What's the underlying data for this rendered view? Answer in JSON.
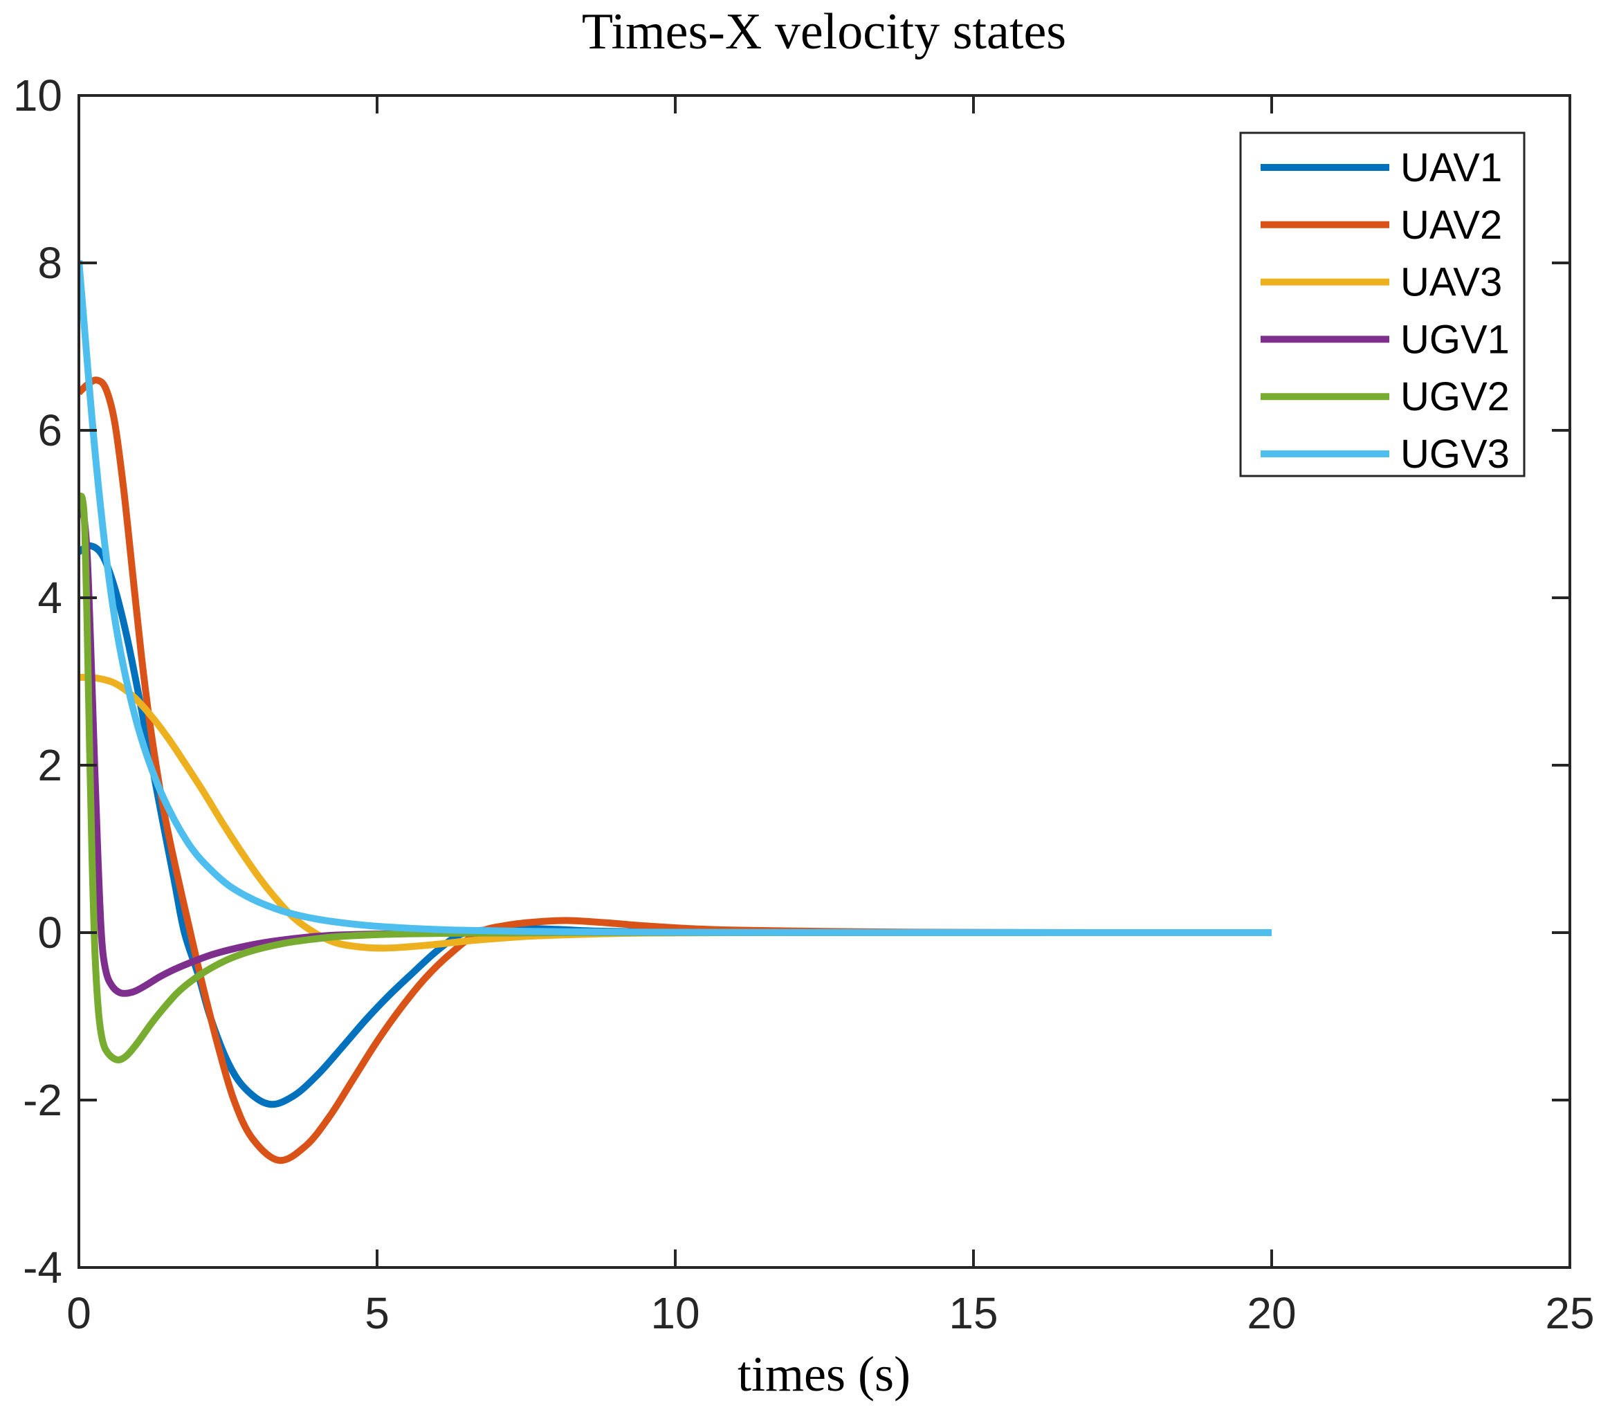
{
  "chart_data": {
    "type": "line",
    "title": "Times-X velocity states",
    "xlabel": "times (s)",
    "ylabel": "",
    "xlim": [
      0,
      25
    ],
    "ylim": [
      -4,
      10
    ],
    "xticks": [
      "0",
      "5",
      "10",
      "15",
      "20",
      "25"
    ],
    "xtick_values": [
      0,
      5,
      10,
      15,
      20,
      25
    ],
    "yticks": [
      "-4",
      "-2",
      "0",
      "2",
      "4",
      "6",
      "8",
      "10"
    ],
    "ytick_values": [
      -4,
      -2,
      0,
      2,
      4,
      6,
      8,
      10
    ],
    "grid": false,
    "legend_position": "top-right",
    "axis_color": "#262626",
    "background": "#ffffff",
    "series": [
      {
        "name": "UAV1",
        "color": "#0072BD",
        "points": [
          [
            0,
            4.55
          ],
          [
            0.2,
            4.62
          ],
          [
            0.4,
            4.5
          ],
          [
            0.6,
            4.12
          ],
          [
            0.8,
            3.55
          ],
          [
            1.0,
            2.85
          ],
          [
            1.2,
            2.1
          ],
          [
            1.4,
            1.35
          ],
          [
            1.6,
            0.62
          ],
          [
            1.77,
            0
          ],
          [
            2.0,
            -0.5
          ],
          [
            2.2,
            -1.0
          ],
          [
            2.5,
            -1.55
          ],
          [
            2.8,
            -1.87
          ],
          [
            3.2,
            -2.05
          ],
          [
            3.6,
            -1.95
          ],
          [
            4.0,
            -1.7
          ],
          [
            4.4,
            -1.38
          ],
          [
            4.8,
            -1.05
          ],
          [
            5.2,
            -0.75
          ],
          [
            5.6,
            -0.48
          ],
          [
            6.0,
            -0.22
          ],
          [
            6.4,
            -0.02
          ],
          [
            6.8,
            0.03
          ],
          [
            7.4,
            0.05
          ],
          [
            8.0,
            0.04
          ],
          [
            8.6,
            0.02
          ],
          [
            9.5,
            0.01
          ],
          [
            11,
            0
          ],
          [
            14,
            0
          ],
          [
            17,
            0
          ],
          [
            20,
            0
          ]
        ]
      },
      {
        "name": "UAV2",
        "color": "#D95319",
        "points": [
          [
            0,
            6.45
          ],
          [
            0.15,
            6.55
          ],
          [
            0.3,
            6.6
          ],
          [
            0.45,
            6.5
          ],
          [
            0.6,
            6.1
          ],
          [
            0.75,
            5.3
          ],
          [
            0.9,
            4.3
          ],
          [
            1.05,
            3.3
          ],
          [
            1.2,
            2.45
          ],
          [
            1.4,
            1.55
          ],
          [
            1.6,
            0.85
          ],
          [
            1.87,
            0
          ],
          [
            2.1,
            -0.7
          ],
          [
            2.35,
            -1.4
          ],
          [
            2.6,
            -2.0
          ],
          [
            2.9,
            -2.45
          ],
          [
            3.35,
            -2.72
          ],
          [
            3.8,
            -2.55
          ],
          [
            4.2,
            -2.2
          ],
          [
            4.6,
            -1.75
          ],
          [
            5.0,
            -1.3
          ],
          [
            5.4,
            -0.9
          ],
          [
            5.8,
            -0.55
          ],
          [
            6.2,
            -0.27
          ],
          [
            6.7,
            0
          ],
          [
            7.2,
            0.09
          ],
          [
            7.7,
            0.13
          ],
          [
            8.2,
            0.145
          ],
          [
            8.8,
            0.12
          ],
          [
            9.5,
            0.08
          ],
          [
            10.2,
            0.05
          ],
          [
            11,
            0.03
          ],
          [
            12.5,
            0.015
          ],
          [
            14,
            0.005
          ],
          [
            17,
            0
          ],
          [
            20,
            0
          ]
        ]
      },
      {
        "name": "UAV3",
        "color": "#EDB120",
        "points": [
          [
            0,
            3.05
          ],
          [
            0.3,
            3.04
          ],
          [
            0.6,
            2.98
          ],
          [
            0.9,
            2.83
          ],
          [
            1.2,
            2.6
          ],
          [
            1.5,
            2.32
          ],
          [
            1.8,
            2.0
          ],
          [
            2.1,
            1.67
          ],
          [
            2.4,
            1.32
          ],
          [
            2.7,
            0.99
          ],
          [
            3.0,
            0.68
          ],
          [
            3.3,
            0.41
          ],
          [
            3.6,
            0.18
          ],
          [
            3.95,
            0
          ],
          [
            4.3,
            -0.12
          ],
          [
            4.7,
            -0.17
          ],
          [
            5.1,
            -0.185
          ],
          [
            5.5,
            -0.17
          ],
          [
            6.0,
            -0.14
          ],
          [
            6.5,
            -0.1
          ],
          [
            7.0,
            -0.07
          ],
          [
            7.5,
            -0.045
          ],
          [
            8.0,
            -0.03
          ],
          [
            8.7,
            -0.015
          ],
          [
            9.5,
            -0.005
          ],
          [
            11,
            0
          ],
          [
            14,
            0
          ],
          [
            17,
            0
          ],
          [
            20,
            0
          ]
        ]
      },
      {
        "name": "UGV1",
        "color": "#7E2F8E",
        "points": [
          [
            0,
            5.0
          ],
          [
            0.08,
            4.98
          ],
          [
            0.14,
            4.5
          ],
          [
            0.2,
            3.4
          ],
          [
            0.26,
            2.1
          ],
          [
            0.32,
            0.9
          ],
          [
            0.38,
            -0.05
          ],
          [
            0.45,
            -0.45
          ],
          [
            0.55,
            -0.63
          ],
          [
            0.7,
            -0.72
          ],
          [
            0.9,
            -0.71
          ],
          [
            1.1,
            -0.64
          ],
          [
            1.35,
            -0.53
          ],
          [
            1.6,
            -0.44
          ],
          [
            1.9,
            -0.35
          ],
          [
            2.2,
            -0.27
          ],
          [
            2.5,
            -0.21
          ],
          [
            2.8,
            -0.16
          ],
          [
            3.1,
            -0.12
          ],
          [
            3.5,
            -0.08
          ],
          [
            3.9,
            -0.05
          ],
          [
            4.3,
            -0.03
          ],
          [
            4.8,
            -0.02
          ],
          [
            5.5,
            -0.01
          ],
          [
            6.5,
            -0.005
          ],
          [
            8,
            0
          ],
          [
            12,
            0
          ],
          [
            16,
            0
          ],
          [
            20,
            0
          ]
        ]
      },
      {
        "name": "UGV2",
        "color": "#77AC30",
        "points": [
          [
            0,
            5.2
          ],
          [
            0.06,
            5.18
          ],
          [
            0.1,
            4.8
          ],
          [
            0.14,
            3.6
          ],
          [
            0.18,
            2.2
          ],
          [
            0.22,
            0.9
          ],
          [
            0.27,
            -0.25
          ],
          [
            0.33,
            -0.95
          ],
          [
            0.4,
            -1.3
          ],
          [
            0.5,
            -1.45
          ],
          [
            0.65,
            -1.52
          ],
          [
            0.8,
            -1.47
          ],
          [
            1.0,
            -1.3
          ],
          [
            1.2,
            -1.1
          ],
          [
            1.4,
            -0.92
          ],
          [
            1.65,
            -0.72
          ],
          [
            1.9,
            -0.57
          ],
          [
            2.2,
            -0.43
          ],
          [
            2.5,
            -0.32
          ],
          [
            2.8,
            -0.24
          ],
          [
            3.1,
            -0.18
          ],
          [
            3.5,
            -0.12
          ],
          [
            3.9,
            -0.08
          ],
          [
            4.3,
            -0.05
          ],
          [
            4.8,
            -0.03
          ],
          [
            5.5,
            -0.015
          ],
          [
            6.5,
            -0.005
          ],
          [
            8,
            0
          ],
          [
            12,
            0
          ],
          [
            16,
            0
          ],
          [
            20,
            0
          ]
        ]
      },
      {
        "name": "UGV3",
        "color": "#4DBEEE",
        "points": [
          [
            0,
            8.03
          ],
          [
            0.12,
            7.0
          ],
          [
            0.25,
            5.9
          ],
          [
            0.4,
            4.85
          ],
          [
            0.55,
            4.0
          ],
          [
            0.7,
            3.35
          ],
          [
            0.9,
            2.7
          ],
          [
            1.1,
            2.2
          ],
          [
            1.35,
            1.72
          ],
          [
            1.6,
            1.35
          ],
          [
            1.9,
            1.0
          ],
          [
            2.2,
            0.76
          ],
          [
            2.5,
            0.57
          ],
          [
            2.8,
            0.44
          ],
          [
            3.1,
            0.34
          ],
          [
            3.5,
            0.24
          ],
          [
            4.0,
            0.16
          ],
          [
            4.5,
            0.11
          ],
          [
            5.0,
            0.075
          ],
          [
            5.6,
            0.05
          ],
          [
            6.3,
            0.03
          ],
          [
            7.2,
            0.018
          ],
          [
            8.2,
            0.01
          ],
          [
            10,
            0.004
          ],
          [
            12,
            0.002
          ],
          [
            15,
            0.001
          ],
          [
            18,
            0
          ],
          [
            20,
            0
          ]
        ]
      }
    ]
  }
}
